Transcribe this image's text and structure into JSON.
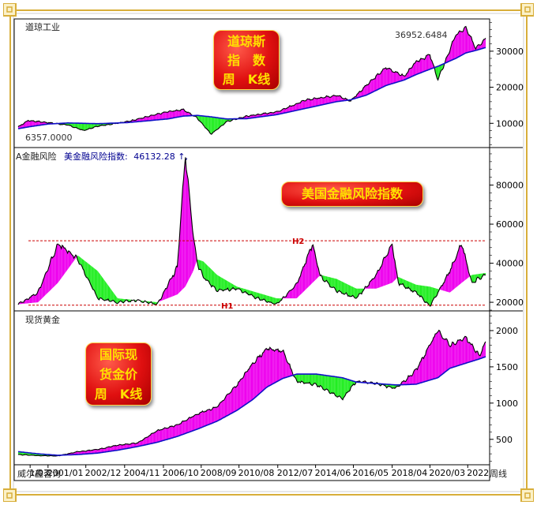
{
  "panels": {
    "dow": {
      "name": "道琼工业",
      "max_label": "36952.6484",
      "min_label": "6357.0000",
      "badge": [
        "道琼斯",
        "指　数",
        "周　K线"
      ]
    },
    "risk": {
      "name": "A金融风险",
      "indicator_label": "美金融风险指数:",
      "indicator_value": "46132.28",
      "indicator_suffix": "↑,",
      "badge": "美国金融风险指数",
      "h1_label": "H1",
      "h2_label": "H2"
    },
    "gold": {
      "name": "现货黄金",
      "badge": [
        "国际现",
        "货金价",
        "周　K线"
      ]
    }
  },
  "footer": {
    "source": "威尔鑫咨询",
    "period": "周线",
    "x_ticks": [
      "1/03",
      "2001/01",
      "2002/12",
      "2004/11",
      "2006/10",
      "2008/09",
      "2010/08",
      "2012/07",
      "2014/06",
      "2016/05",
      "2018/04",
      "2020/03",
      "2022"
    ]
  },
  "colors": {
    "price": "#000000",
    "moving_average": "#1010c8",
    "fill_above": "#ee00ee",
    "fill_below": "#22ee22",
    "threshold_line": "#cc0000",
    "badge_text": "#ffe000",
    "badge_bg": "#e01010"
  },
  "chart_data": [
    {
      "type": "line",
      "title": "道琼工业",
      "x": [
        1999.5,
        2000.0,
        2001.0,
        2002.0,
        2002.8,
        2003.5,
        2005.0,
        2007.0,
        2007.8,
        2008.5,
        2009.2,
        2010.0,
        2011.0,
        2012.5,
        2014.0,
        2015.5,
        2016.2,
        2017.0,
        2018.0,
        2018.9,
        2019.5,
        2020.2,
        2020.6,
        2021.5,
        2022.0,
        2022.5,
        2023.0
      ],
      "series": [
        {
          "values": [
            9000,
            10800,
            10200,
            9500,
            8000,
            9200,
            10500,
            13200,
            13800,
            11500,
            7000,
            10500,
            12000,
            13200,
            16500,
            17800,
            16200,
            20500,
            25500,
            23000,
            27000,
            29000,
            22000,
            34500,
            36400,
            31000,
            33500
          ]
        },
        {
          "values": [
            8500,
            9000,
            9800,
            10100,
            10000,
            9900,
            10200,
            11200,
            12000,
            12200,
            11800,
            11200,
            11300,
            12400,
            14200,
            16000,
            16500,
            17800,
            20500,
            22000,
            23500,
            25000,
            25800,
            28000,
            29500,
            30200,
            31000
          ]
        }
      ],
      "annotations": [
        "36952.6484",
        "6357.0000"
      ],
      "ylim": [
        3500,
        38500
      ],
      "yticks": [
        10000,
        20000,
        30000
      ]
    },
    {
      "type": "area",
      "title": "A金融风险",
      "x": [
        1999.5,
        2000.5,
        2001.5,
        2002.5,
        2003.5,
        2004.5,
        2005.5,
        2006.5,
        2007.5,
        2007.9,
        2008.3,
        2008.5,
        2008.8,
        2009.5,
        2010.5,
        2011.5,
        2012.5,
        2013.5,
        2014.3,
        2014.7,
        2015.5,
        2016.5,
        2017.5,
        2018.3,
        2018.6,
        2019.5,
        2020.2,
        2021.2,
        2021.8,
        2022.3,
        2023.0
      ],
      "series": [
        {
          "values": [
            19000,
            25000,
            50000,
            42000,
            22000,
            20000,
            21000,
            19000,
            38000,
            95000,
            55000,
            40000,
            33000,
            26000,
            27000,
            22000,
            19000,
            29000,
            50000,
            33000,
            26000,
            22000,
            34000,
            50000,
            30000,
            25000,
            18000,
            36000,
            50000,
            30000,
            34000
          ]
        },
        {
          "values": [
            19000,
            20000,
            30000,
            44000,
            36000,
            22000,
            21000,
            20000,
            24000,
            28000,
            36000,
            42000,
            41000,
            34000,
            28000,
            25000,
            22000,
            22000,
            30000,
            34000,
            32000,
            27000,
            27000,
            30000,
            33000,
            29000,
            28000,
            25000,
            30000,
            34000,
            35000
          ]
        }
      ],
      "reference_lines": [
        {
          "label": "H1",
          "value": 18500
        },
        {
          "label": "H2",
          "value": 51500
        }
      ],
      "annotations": [
        "美金融风险指数:",
        "46132.28"
      ],
      "ylim": [
        16000,
        98000
      ],
      "yticks": [
        20000,
        40000,
        60000,
        80000
      ]
    },
    {
      "type": "line",
      "title": "现货黄金",
      "x": [
        1999.5,
        2000.5,
        2001.5,
        2002.5,
        2003.5,
        2004.5,
        2005.5,
        2006.5,
        2007.5,
        2008.5,
        2009.5,
        2010.5,
        2011.3,
        2012.0,
        2012.8,
        2013.5,
        2014.5,
        2015.8,
        2016.5,
        2017.5,
        2018.5,
        2019.5,
        2020.6,
        2021.2,
        2022.0,
        2022.7,
        2023.0
      ],
      "series": [
        {
          "values": [
            290,
            275,
            270,
            330,
            360,
            420,
            450,
            620,
            700,
            850,
            950,
            1250,
            1550,
            1750,
            1720,
            1300,
            1250,
            1060,
            1300,
            1270,
            1200,
            1450,
            2000,
            1800,
            1900,
            1650,
            1850
          ]
        },
        {
          "values": [
            330,
            300,
            280,
            290,
            310,
            350,
            400,
            460,
            540,
            640,
            750,
            900,
            1050,
            1220,
            1340,
            1400,
            1400,
            1350,
            1290,
            1270,
            1250,
            1260,
            1350,
            1480,
            1550,
            1610,
            1640
          ]
        }
      ],
      "ylim": [
        160,
        2250
      ],
      "yticks": [
        500,
        1000,
        1500,
        2000
      ]
    }
  ]
}
